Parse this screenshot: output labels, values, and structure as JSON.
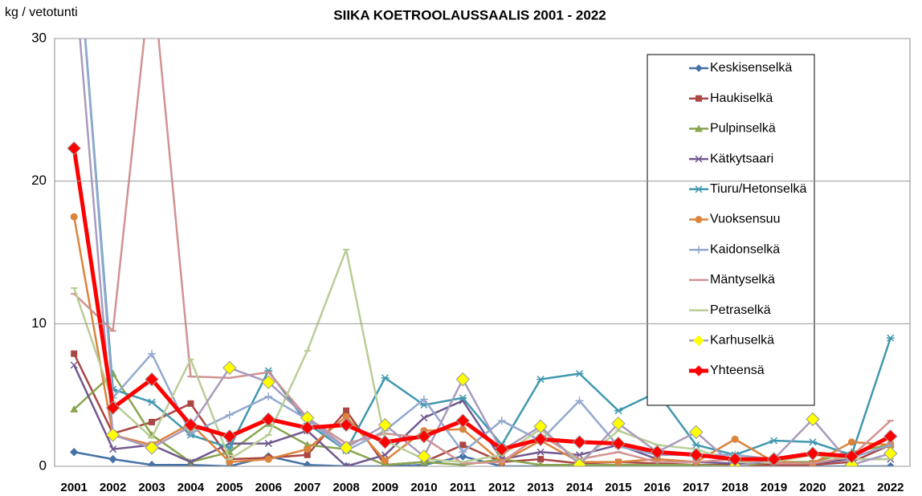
{
  "chart_data": {
    "type": "line",
    "title": "SIIKA  KOETROOLAUSSAALIS 2001 - 2022",
    "y_label": "kg / vetotunti",
    "categories": [
      "2001",
      "2002",
      "2003",
      "2004",
      "2005",
      "2006",
      "2007",
      "2008",
      "2009",
      "2010",
      "2011",
      "2012",
      "2013",
      "2014",
      "2015",
      "2016",
      "2017",
      "2018",
      "2019",
      "2020",
      "2021",
      "2022"
    ],
    "ylim": [
      0,
      30
    ],
    "yticks": [
      0,
      10,
      20,
      30
    ],
    "grid": true,
    "legend": "upper right",
    "series": [
      {
        "name": "Keskisenselkä",
        "color": "#4572a7",
        "marker": "diamond",
        "values": [
          1.0,
          0.5,
          0.1,
          0.1,
          0.0,
          0.7,
          0.1,
          0.0,
          0.0,
          0.1,
          0.7,
          0.0,
          0.0,
          0.0,
          0.0,
          0.0,
          0.0,
          0.0,
          0.0,
          0.0,
          0.0,
          0.0
        ]
      },
      {
        "name": "Haukiselkä",
        "color": "#aa4643",
        "marker": "square",
        "values": [
          7.9,
          2.3,
          3.1,
          4.4,
          0.5,
          0.6,
          0.8,
          3.9,
          0.1,
          0.3,
          1.5,
          0.3,
          0.5,
          0.2,
          0.3,
          0.2,
          0.1,
          0.1,
          0.1,
          0.1,
          0.3,
          1.5
        ]
      },
      {
        "name": "Pulpinselkä",
        "color": "#89a54e",
        "marker": "triangle",
        "values": [
          4.0,
          6.5,
          2.2,
          0.3,
          1.0,
          3.0,
          1.5,
          1.2,
          0.1,
          0.3,
          0.1,
          0.5,
          0.1,
          0.1,
          0.1,
          0.1,
          0.1,
          0.0,
          0.3,
          0.3,
          1.0,
          1.5
        ]
      },
      {
        "name": "Kätkytsaari",
        "color": "#71588f",
        "marker": "x",
        "values": [
          7.1,
          1.2,
          1.5,
          0.3,
          1.6,
          1.6,
          2.5,
          0.0,
          0.8,
          3.4,
          4.6,
          0.5,
          1.0,
          0.8,
          1.5,
          0.5,
          0.3,
          0.2,
          0.3,
          0.2,
          0.5,
          0.5
        ]
      },
      {
        "name": "Tiuru/Hetonselkä",
        "color": "#4198af",
        "marker": "star",
        "values": [
          40,
          5.4,
          4.5,
          2.2,
          1.3,
          6.7,
          3.0,
          1.1,
          6.2,
          4.3,
          4.8,
          1.5,
          6.1,
          6.5,
          3.9,
          5.2,
          1.5,
          0.8,
          1.8,
          1.7,
          0.8,
          9.0
        ]
      },
      {
        "name": "Vuoksensuu",
        "color": "#db843d",
        "marker": "circle",
        "values": [
          17.5,
          2.2,
          1.5,
          3.0,
          0.3,
          0.5,
          1.2,
          3.5,
          0.4,
          2.5,
          2.6,
          0.3,
          1.8,
          0.3,
          0.3,
          0.5,
          0.3,
          1.9,
          0.3,
          0.2,
          1.7,
          1.5
        ]
      },
      {
        "name": "Kaidonselkä",
        "color": "#93a9cf",
        "marker": "plus",
        "values": [
          40,
          4.8,
          7.9,
          2.3,
          3.6,
          4.9,
          3.3,
          1.1,
          2.5,
          4.7,
          1.0,
          3.2,
          1.8,
          4.6,
          1.4,
          0.8,
          0.8,
          0.8,
          0.5,
          0.8,
          0.6,
          1.5
        ]
      },
      {
        "name": "Mäntyselkä",
        "color": "#d19392",
        "marker": "dash",
        "values": [
          12.1,
          9.5,
          35,
          6.3,
          6.2,
          6.6,
          3.4,
          1.6,
          2.3,
          2.0,
          0.2,
          0.3,
          2.2,
          0.5,
          1.0,
          0.3,
          0.3,
          0.5,
          0.2,
          0.2,
          0.7,
          3.2
        ]
      },
      {
        "name": "Petraselkä",
        "color": "#b9cd96",
        "marker": "dash",
        "values": [
          12.5,
          4.5,
          2.0,
          7.5,
          0.5,
          2.2,
          8.1,
          15.2,
          1.8,
          0.5,
          0.3,
          0.8,
          2.6,
          0.3,
          2.5,
          1.5,
          1.2,
          0.3,
          0.3,
          0.8,
          0.5,
          0.5
        ]
      },
      {
        "name": "Karhuselkä",
        "color": "#a99bbd",
        "marker_color": "#ffff00",
        "marker": "diamond",
        "values": [
          35,
          2.2,
          1.3,
          2.8,
          6.9,
          5.9,
          3.4,
          1.3,
          2.9,
          0.7,
          6.1,
          1.1,
          2.8,
          0.1,
          3.0,
          1.0,
          2.4,
          0.0,
          0.5,
          3.3,
          0.1,
          0.9
        ]
      },
      {
        "name": "Yhteensä",
        "color": "#ff0000",
        "marker": "diamond",
        "width": 5,
        "values": [
          22.3,
          4.1,
          6.1,
          2.9,
          2.1,
          3.3,
          2.7,
          2.9,
          1.7,
          2.1,
          3.2,
          1.2,
          1.9,
          1.7,
          1.6,
          1.0,
          0.8,
          0.5,
          0.5,
          0.9,
          0.7,
          2.1
        ]
      }
    ]
  }
}
